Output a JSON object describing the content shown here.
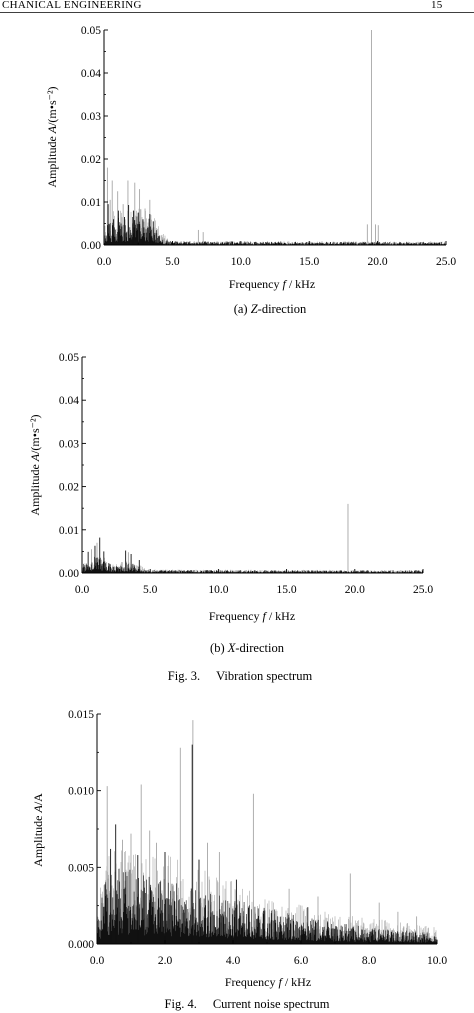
{
  "header": {
    "running_title": "CHANICAL ENGINEERING",
    "page_number": "15"
  },
  "figure3": {
    "label": "Fig. 3.",
    "title": "Vibration spectrum"
  },
  "figure4": {
    "label": "Fig. 4.",
    "title": "Current noise spectrum"
  },
  "colors": {
    "dense": "#111111",
    "spike_gray": "#a6a6a6",
    "axis": "#000000"
  },
  "chart_data": [
    {
      "type": "line",
      "caption": [
        "(a) ",
        "Z",
        "-direction"
      ],
      "xlabel": [
        "Frequency ",
        "f",
        " / kHz"
      ],
      "ylabel": [
        "Amplitude ",
        "A",
        "/(m•s⁻²)"
      ],
      "xlim": [
        0,
        25
      ],
      "ylim": [
        0,
        0.05
      ],
      "xticks": [
        0,
        5,
        10,
        15,
        20,
        25
      ],
      "xtick_labels": [
        "0.0",
        "5.0",
        "10.0",
        "15.0",
        "20.0",
        "25.0"
      ],
      "yticks": [
        0,
        0.01,
        0.02,
        0.03,
        0.04,
        0.05
      ],
      "ytick_labels": [
        "0.00",
        "0.01",
        "0.02",
        "0.03",
        "0.04",
        "0.05"
      ],
      "grid": false,
      "dense_envelope": [
        [
          0,
          0.0025
        ],
        [
          0.2,
          0.006
        ],
        [
          0.6,
          0.0055
        ],
        [
          1.0,
          0.0065
        ],
        [
          1.5,
          0.006
        ],
        [
          2.0,
          0.0075
        ],
        [
          2.5,
          0.0065
        ],
        [
          3.0,
          0.006
        ],
        [
          3.4,
          0.0065
        ],
        [
          3.8,
          0.004
        ],
        [
          4.2,
          0.0015
        ],
        [
          4.8,
          0.0009
        ],
        [
          25,
          0.0007
        ]
      ],
      "gray_envelope": [
        [
          0,
          0.004
        ],
        [
          0.5,
          0.008
        ],
        [
          1.5,
          0.0085
        ],
        [
          2.5,
          0.009
        ],
        [
          3.5,
          0.0075
        ],
        [
          4.2,
          0.003
        ],
        [
          5,
          0.0009
        ],
        [
          25,
          0.0008
        ]
      ],
      "peaks": [
        {
          "x": 0.25,
          "y": 0.018,
          "color": "#a6a6a6"
        },
        {
          "x": 0.45,
          "y": 0.0105,
          "color": "#a6a6a6"
        },
        {
          "x": 0.6,
          "y": 0.015,
          "color": "#a6a6a6"
        },
        {
          "x": 1.0,
          "y": 0.0125,
          "color": "#a6a6a6"
        },
        {
          "x": 1.4,
          "y": 0.0095,
          "color": "#a6a6a6"
        },
        {
          "x": 1.75,
          "y": 0.015,
          "color": "#a6a6a6"
        },
        {
          "x": 2.25,
          "y": 0.0145,
          "color": "#a6a6a6"
        },
        {
          "x": 2.6,
          "y": 0.013,
          "color": "#a6a6a6"
        },
        {
          "x": 3.0,
          "y": 0.0085,
          "color": "#a6a6a6"
        },
        {
          "x": 3.35,
          "y": 0.0105,
          "color": "#a6a6a6"
        },
        {
          "x": 6.9,
          "y": 0.0035,
          "color": "#a6a6a6"
        },
        {
          "x": 7.25,
          "y": 0.003,
          "color": "#a6a6a6"
        },
        {
          "x": 19.25,
          "y": 0.0048,
          "color": "#a6a6a6"
        },
        {
          "x": 19.55,
          "y": 0.05,
          "color": "#a6a6a6"
        },
        {
          "x": 19.85,
          "y": 0.0048,
          "color": "#a6a6a6"
        },
        {
          "x": 20.05,
          "y": 0.0046,
          "color": "#a6a6a6"
        },
        {
          "x": 0.3,
          "y": 0.0095,
          "color": "#111111"
        },
        {
          "x": 0.7,
          "y": 0.006,
          "color": "#111111"
        },
        {
          "x": 1.05,
          "y": 0.008,
          "color": "#111111"
        },
        {
          "x": 1.5,
          "y": 0.0065,
          "color": "#111111"
        },
        {
          "x": 1.8,
          "y": 0.0093,
          "color": "#111111"
        },
        {
          "x": 2.15,
          "y": 0.008,
          "color": "#111111"
        },
        {
          "x": 2.5,
          "y": 0.0075,
          "color": "#111111"
        },
        {
          "x": 2.85,
          "y": 0.006,
          "color": "#111111"
        },
        {
          "x": 3.35,
          "y": 0.0072,
          "color": "#111111"
        },
        {
          "x": 3.6,
          "y": 0.0055,
          "color": "#111111"
        }
      ]
    },
    {
      "type": "line",
      "caption": [
        "(b) ",
        "X",
        "-direction"
      ],
      "xlabel": [
        "Frequency ",
        "f",
        " / kHz"
      ],
      "ylabel": [
        "Amplitude ",
        "A",
        "/(m•s⁻²)"
      ],
      "xlim": [
        0,
        25
      ],
      "ylim": [
        0,
        0.05
      ],
      "xticks": [
        0,
        5,
        10,
        15,
        20,
        25
      ],
      "xtick_labels": [
        "0.0",
        "5.0",
        "10.0",
        "15.0",
        "20.0",
        "25.0"
      ],
      "yticks": [
        0,
        0.01,
        0.02,
        0.03,
        0.04,
        0.05
      ],
      "ytick_labels": [
        "0.00",
        "0.01",
        "0.02",
        "0.03",
        "0.04",
        "0.05"
      ],
      "grid": false,
      "dense_envelope": [
        [
          0,
          0.0015
        ],
        [
          0.4,
          0.0035
        ],
        [
          0.9,
          0.004
        ],
        [
          1.3,
          0.0045
        ],
        [
          1.8,
          0.003
        ],
        [
          2.3,
          0.0015
        ],
        [
          2.8,
          0.0018
        ],
        [
          3.3,
          0.003
        ],
        [
          3.8,
          0.0022
        ],
        [
          4.3,
          0.0013
        ],
        [
          4.8,
          0.0007
        ],
        [
          25,
          0.0006
        ]
      ],
      "gray_envelope": [
        [
          0,
          0.002
        ],
        [
          1,
          0.004
        ],
        [
          2,
          0.0025
        ],
        [
          3.5,
          0.003
        ],
        [
          4.5,
          0.0015
        ],
        [
          5,
          0.0008
        ],
        [
          25,
          0.0007
        ]
      ],
      "peaks": [
        {
          "x": 0.7,
          "y": 0.0055,
          "color": "#a6a6a6"
        },
        {
          "x": 1.1,
          "y": 0.007,
          "color": "#a6a6a6"
        },
        {
          "x": 3.4,
          "y": 0.0048,
          "color": "#a6a6a6"
        },
        {
          "x": 19.5,
          "y": 0.016,
          "color": "#a6a6a6"
        },
        {
          "x": 0.45,
          "y": 0.0049,
          "color": "#111111"
        },
        {
          "x": 0.95,
          "y": 0.0063,
          "color": "#111111"
        },
        {
          "x": 1.3,
          "y": 0.0082,
          "color": "#111111"
        },
        {
          "x": 1.6,
          "y": 0.005,
          "color": "#111111"
        },
        {
          "x": 3.2,
          "y": 0.0052,
          "color": "#111111"
        },
        {
          "x": 3.6,
          "y": 0.0044,
          "color": "#111111"
        },
        {
          "x": 4.2,
          "y": 0.003,
          "color": "#111111"
        }
      ]
    },
    {
      "type": "line",
      "xlabel": [
        "Frequency ",
        "f",
        " / kHz"
      ],
      "ylabel": [
        "Amplitude ",
        "A",
        "/A"
      ],
      "xlim": [
        0,
        10
      ],
      "ylim": [
        0,
        0.015
      ],
      "xticks": [
        0,
        2,
        4,
        6,
        8,
        10
      ],
      "xtick_labels": [
        "0.0",
        "2.0",
        "4.0",
        "6.0",
        "8.0",
        "10.0"
      ],
      "yticks": [
        0,
        0.005,
        0.01,
        0.015
      ],
      "ytick_labels": [
        "0.000",
        "0.005",
        "0.010",
        "0.015"
      ],
      "grid": false,
      "dense_envelope": [
        [
          0,
          0.0015
        ],
        [
          0.2,
          0.004
        ],
        [
          0.6,
          0.005
        ],
        [
          1.2,
          0.0048
        ],
        [
          2.0,
          0.0042
        ],
        [
          3.0,
          0.0035
        ],
        [
          4.0,
          0.003
        ],
        [
          5.0,
          0.0024
        ],
        [
          6.0,
          0.0018
        ],
        [
          7.0,
          0.0014
        ],
        [
          8.0,
          0.0011
        ],
        [
          9.0,
          0.0009
        ],
        [
          10.0,
          0.0007
        ]
      ],
      "gray_envelope": [
        [
          0,
          0.002
        ],
        [
          0.2,
          0.006
        ],
        [
          1.0,
          0.0065
        ],
        [
          2.0,
          0.006
        ],
        [
          3.0,
          0.005
        ],
        [
          4.0,
          0.0042
        ],
        [
          5.0,
          0.0033
        ],
        [
          6.0,
          0.0026
        ],
        [
          7.0,
          0.002
        ],
        [
          8.0,
          0.0017
        ],
        [
          9.0,
          0.0014
        ],
        [
          10.0,
          0.0012
        ]
      ],
      "peaks": [
        {
          "x": 0.3,
          "y": 0.0103,
          "color": "#a6a6a6"
        },
        {
          "x": 0.75,
          "y": 0.0068,
          "color": "#a6a6a6"
        },
        {
          "x": 1.0,
          "y": 0.0072,
          "color": "#a6a6a6"
        },
        {
          "x": 1.3,
          "y": 0.0104,
          "color": "#a6a6a6"
        },
        {
          "x": 1.55,
          "y": 0.0074,
          "color": "#a6a6a6"
        },
        {
          "x": 1.75,
          "y": 0.0066,
          "color": "#a6a6a6"
        },
        {
          "x": 2.45,
          "y": 0.0128,
          "color": "#a6a6a6"
        },
        {
          "x": 2.82,
          "y": 0.0146,
          "color": "#a6a6a6"
        },
        {
          "x": 3.25,
          "y": 0.0066,
          "color": "#a6a6a6"
        },
        {
          "x": 3.6,
          "y": 0.006,
          "color": "#a6a6a6"
        },
        {
          "x": 4.6,
          "y": 0.0098,
          "color": "#a6a6a6"
        },
        {
          "x": 5.65,
          "y": 0.0036,
          "color": "#a6a6a6"
        },
        {
          "x": 6.5,
          "y": 0.0031,
          "color": "#a6a6a6"
        },
        {
          "x": 7.45,
          "y": 0.0046,
          "color": "#a6a6a6"
        },
        {
          "x": 8.3,
          "y": 0.0027,
          "color": "#a6a6a6"
        },
        {
          "x": 8.85,
          "y": 0.0021,
          "color": "#a6a6a6"
        },
        {
          "x": 9.4,
          "y": 0.0018,
          "color": "#a6a6a6"
        },
        {
          "x": 0.4,
          "y": 0.0062,
          "color": "#111111"
        },
        {
          "x": 0.55,
          "y": 0.0078,
          "color": "#111111"
        },
        {
          "x": 1.2,
          "y": 0.0058,
          "color": "#111111"
        },
        {
          "x": 2.0,
          "y": 0.006,
          "color": "#111111"
        },
        {
          "x": 2.8,
          "y": 0.013,
          "color": "#111111"
        },
        {
          "x": 3.0,
          "y": 0.0055,
          "color": "#111111"
        },
        {
          "x": 4.1,
          "y": 0.0042,
          "color": "#111111"
        },
        {
          "x": 6.2,
          "y": 0.0024,
          "color": "#111111"
        }
      ]
    }
  ]
}
